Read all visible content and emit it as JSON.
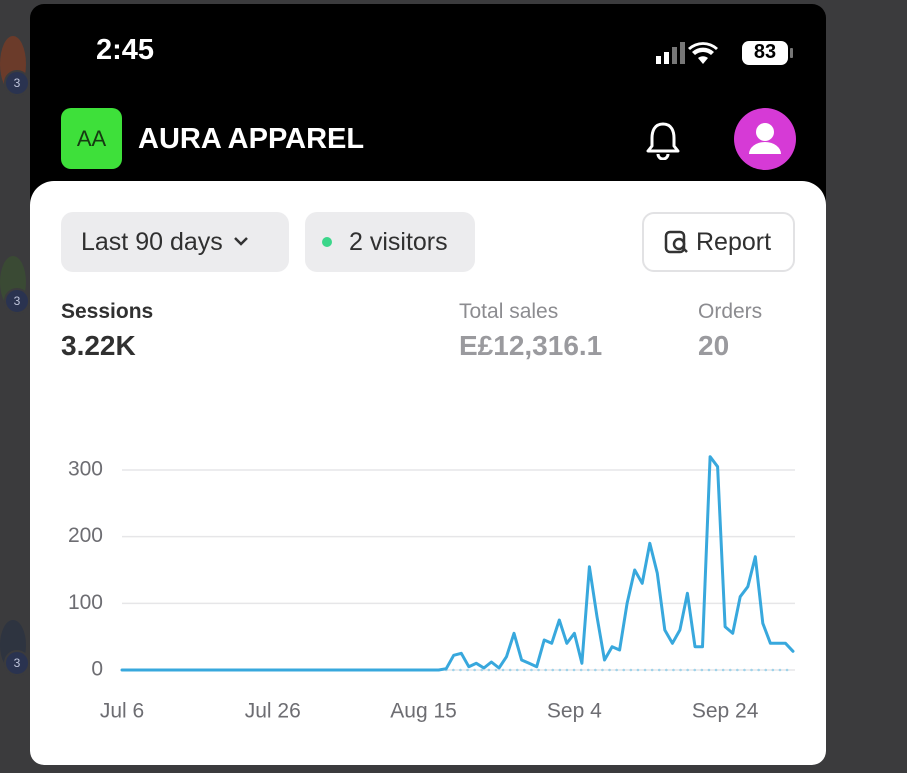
{
  "status_bar": {
    "time": "2:45",
    "battery": "83"
  },
  "header": {
    "avatar_initials": "AA",
    "store_name": "AURA APPAREL"
  },
  "background": {
    "badges": [
      "3",
      "3",
      "3"
    ]
  },
  "filters": {
    "date_range": "Last 90 days",
    "visitors": "2 visitors",
    "report": "Report"
  },
  "metrics": [
    {
      "label": "Sessions",
      "value": "3.22K"
    },
    {
      "label": "Total sales",
      "value": "E£12,316.1"
    },
    {
      "label": "Orders",
      "value": "20"
    }
  ],
  "chart_data": {
    "type": "line",
    "categories": [
      "Jul 6",
      null,
      null,
      null,
      null,
      null,
      null,
      null,
      null,
      null,
      null,
      null,
      null,
      null,
      null,
      null,
      null,
      null,
      null,
      null,
      "Jul 26",
      null,
      null,
      null,
      null,
      null,
      null,
      null,
      null,
      null,
      null,
      null,
      null,
      null,
      null,
      null,
      null,
      null,
      null,
      null,
      "Aug 15",
      null,
      null,
      null,
      null,
      null,
      null,
      null,
      null,
      null,
      null,
      null,
      null,
      null,
      null,
      null,
      null,
      null,
      null,
      null,
      "Sep 4",
      null,
      null,
      null,
      null,
      null,
      null,
      null,
      null,
      null,
      null,
      null,
      null,
      null,
      null,
      null,
      null,
      null,
      null,
      null,
      "Sep 24",
      null,
      null,
      null,
      null,
      null,
      null,
      null,
      null,
      null
    ],
    "series": [
      {
        "color": "#38a8dd",
        "style": "solid",
        "values": [
          0,
          0,
          0,
          0,
          0,
          0,
          0,
          0,
          0,
          0,
          0,
          0,
          0,
          0,
          0,
          0,
          0,
          0,
          0,
          0,
          0,
          0,
          0,
          0,
          0,
          0,
          0,
          0,
          0,
          0,
          0,
          0,
          0,
          0,
          0,
          0,
          0,
          0,
          0,
          0,
          0,
          0,
          0,
          2,
          22,
          25,
          5,
          10,
          3,
          12,
          3,
          20,
          55,
          15,
          10,
          5,
          45,
          40,
          75,
          40,
          55,
          10,
          155,
          80,
          15,
          35,
          30,
          100,
          150,
          130,
          190,
          145,
          60,
          40,
          60,
          115,
          35,
          35,
          320,
          305,
          65,
          55,
          110,
          125,
          170,
          70,
          40,
          40,
          40,
          28
        ]
      },
      {
        "color": "#9fd3ea",
        "style": "dotted",
        "values": [
          null,
          null,
          null,
          null,
          null,
          null,
          null,
          null,
          null,
          null,
          null,
          null,
          null,
          null,
          null,
          null,
          null,
          null,
          null,
          null,
          null,
          null,
          null,
          null,
          null,
          null,
          null,
          null,
          null,
          null,
          null,
          null,
          null,
          null,
          null,
          null,
          null,
          null,
          null,
          null,
          null,
          null,
          null,
          0,
          0,
          0,
          0,
          0,
          0,
          0,
          0,
          0,
          0,
          0,
          0,
          0,
          0,
          0,
          0,
          0,
          0,
          0,
          0,
          0,
          0,
          0,
          0,
          0,
          0,
          0,
          0,
          0,
          0,
          0,
          0,
          0,
          0,
          0,
          0,
          0,
          0,
          0,
          0,
          0,
          0,
          0,
          0,
          0,
          0,
          0
        ]
      }
    ],
    "ylim": [
      0,
      330
    ],
    "yticks": [
      0,
      100,
      200,
      300
    ],
    "grid": true
  }
}
